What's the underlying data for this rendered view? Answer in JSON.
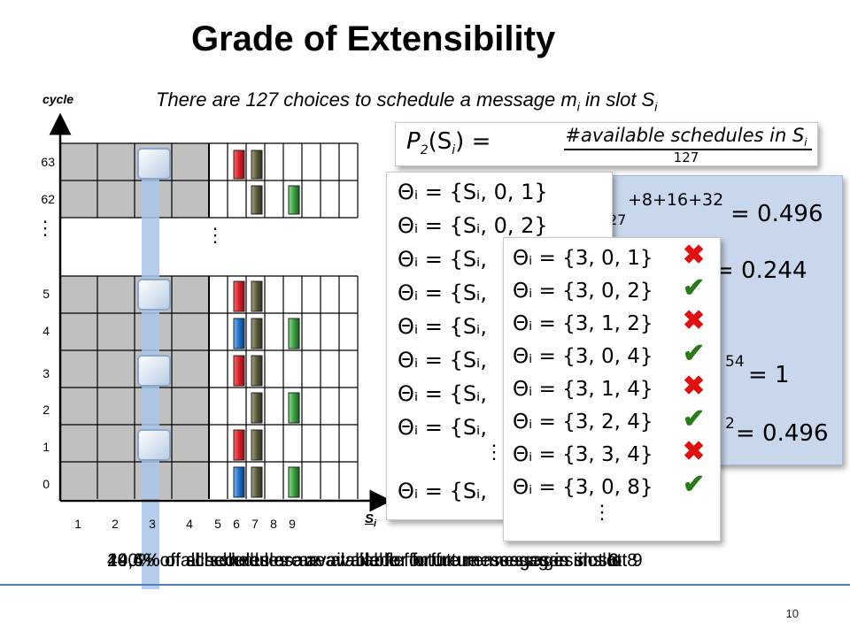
{
  "title": "Grade of Extensibility",
  "subtitle": "There are 127 choices to schedule a message m",
  "subtitle_sub_i": "i",
  "subtitle_rest": " in slot S",
  "subtitle_sub_i2": "i",
  "axes": {
    "y_title": "cycle",
    "x_title": "S",
    "x_title_sub": "i",
    "y_ticks": [
      "63",
      "62",
      "5",
      "4",
      "3",
      "2",
      "1",
      "0"
    ],
    "x_ticks": [
      "1",
      "2",
      "3",
      "4",
      "5",
      "6",
      "7",
      "8",
      "9"
    ],
    "ellipsis": "⋮"
  },
  "formula": {
    "lhs": "P",
    "lhs_sub": "2",
    "lhs_arg": "(S",
    "lhs_arg_sub": "i",
    "lhs_arg_end": ") = ",
    "numerator": "#available schedules in S",
    "numerator_sub": "i",
    "denominator": "127"
  },
  "card_back": {
    "frag1": "+8+16+32",
    "frag1b": "27",
    "val1": "= 0.496",
    "val2": "= 0.244",
    "frag3": "54",
    "val3": "= 1",
    "frag4": "2",
    "val4": "= 0.496"
  },
  "card_mid": {
    "rows": [
      "Θᵢ = {Sᵢ, 0, 1}",
      "Θᵢ = {Sᵢ, 0, 2}",
      "Θᵢ = {Sᵢ,",
      "Θᵢ = {Sᵢ,",
      "Θᵢ = {Sᵢ,",
      "Θᵢ = {Sᵢ,",
      "Θᵢ = {Sᵢ,",
      "Θᵢ = {Sᵢ,"
    ],
    "last": "Θᵢ = {Sᵢ,",
    "ellipsis": "⋮"
  },
  "card_front": {
    "rows": [
      {
        "expr": "Θᵢ = {3, 0, 1}",
        "mark": "✖",
        "ok": false
      },
      {
        "expr": "Θᵢ = {3, 0, 2}",
        "mark": "✔",
        "ok": true
      },
      {
        "expr": "Θᵢ = {3, 1, 2}",
        "mark": "✖",
        "ok": false
      },
      {
        "expr": "Θᵢ = {3, 0, 4}",
        "mark": "✔",
        "ok": true
      },
      {
        "expr": "Θᵢ = {3, 1, 4}",
        "mark": "✖",
        "ok": false
      },
      {
        "expr": "Θᵢ = {3, 2, 4}",
        "mark": "✔",
        "ok": true
      },
      {
        "expr": "Θᵢ = {3, 3, 4}",
        "mark": "✖",
        "ok": false
      },
      {
        "expr": "Θᵢ = {3, 0, 8}",
        "mark": "✔",
        "ok": true
      }
    ],
    "ellipsis": "⋮"
  },
  "overlapping_captions": [
    "49,6% of schedules are available for future messages in slot  3",
    "24,4% of schedules are available for future messages in slot  6",
    "100% of all schedules are available for future messages in slot  8",
    "49,6% of all schedules are available for future messages in slot  9"
  ],
  "page_number": "10",
  "colors": {
    "accent_line": "#4d7fbf",
    "grid_fill": "#c0c0c0",
    "msg_red": "#d8202a",
    "msg_dark": "#5c5a3a",
    "msg_blue": "#1e70c8",
    "msg_green": "#3aa040",
    "highlight": "#a9c6e8",
    "check": "#2a7a18",
    "cross": "#e01010"
  }
}
